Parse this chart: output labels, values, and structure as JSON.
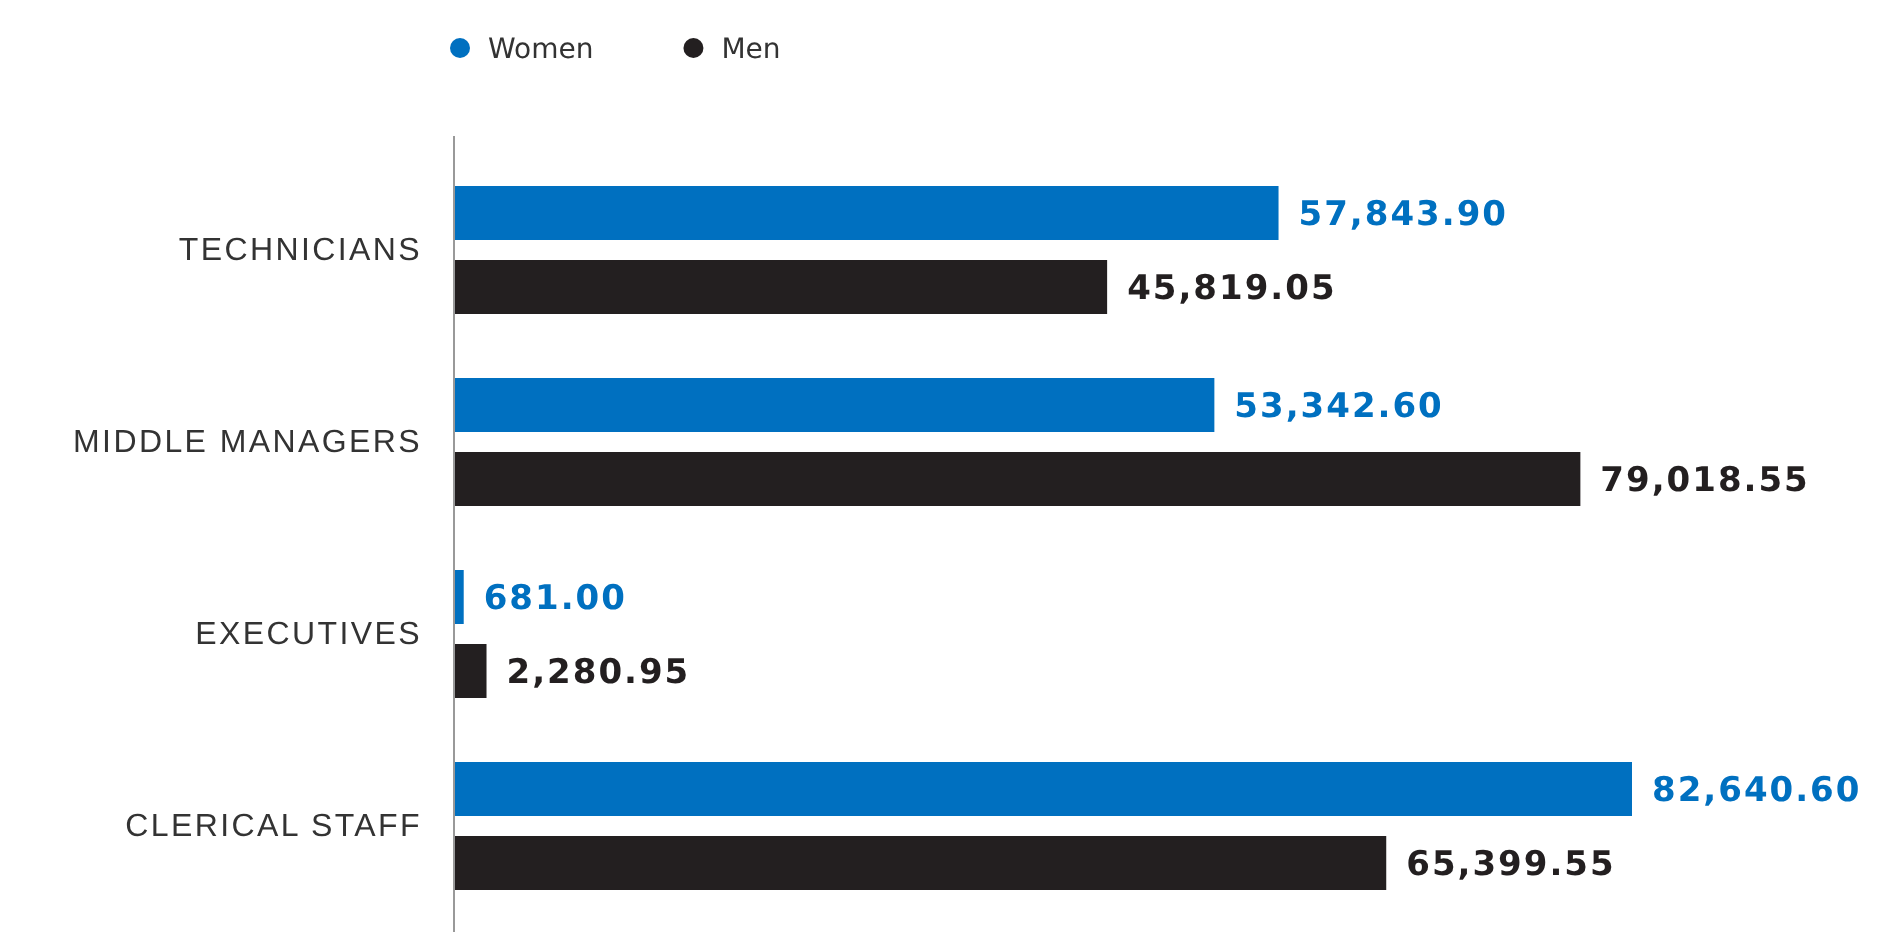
{
  "chart_data": {
    "type": "bar",
    "orientation": "horizontal",
    "categories": [
      "TECHNICIANS",
      "MIDDLE MANAGERS",
      "EXECUTIVES",
      "CLERICAL STAFF"
    ],
    "series": [
      {
        "name": "Women",
        "color": "#0070c0",
        "values": [
          57843.9,
          53342.6,
          681.0,
          82640.6
        ],
        "value_labels": [
          "57,843.90",
          "53,342.60",
          "681.00",
          "82,640.60"
        ]
      },
      {
        "name": "Men",
        "color": "#231f20",
        "values": [
          45819.05,
          79018.55,
          2280.95,
          65399.55
        ],
        "value_labels": [
          "45,819.05",
          "79,018.55",
          "2,280.95",
          "65,399.55"
        ]
      }
    ],
    "legend": "top left"
  }
}
